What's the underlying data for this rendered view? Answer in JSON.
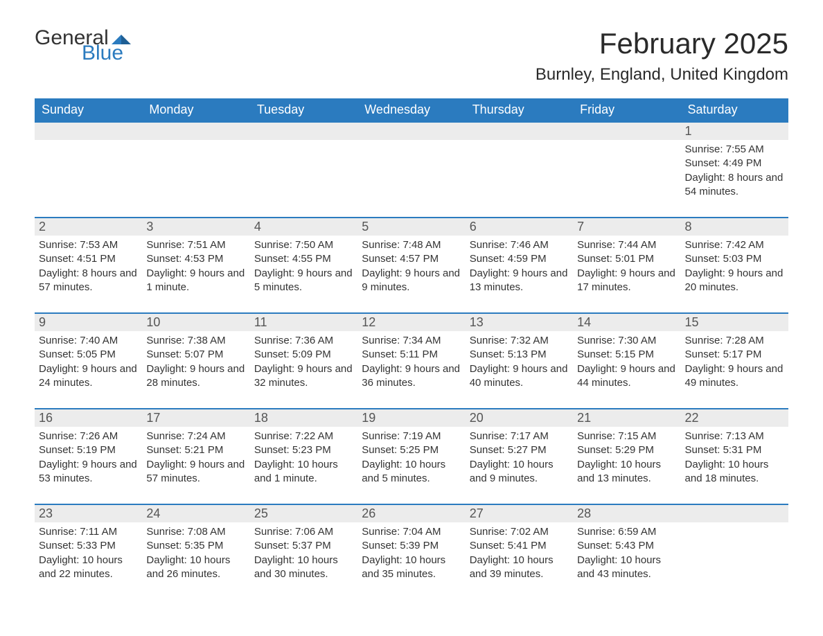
{
  "brand": {
    "word1": "General",
    "word2": "Blue",
    "text_color": "#333333",
    "accent_color": "#2b7bbf",
    "word1_fontsize": 30,
    "word2_fontsize": 30
  },
  "title": {
    "month_year": "February 2025",
    "location": "Burnley, England, United Kingdom",
    "title_fontsize": 42,
    "location_fontsize": 24,
    "title_color": "#2a2a2a"
  },
  "calendar": {
    "type": "table",
    "header_bg": "#2b7bbf",
    "header_text_color": "#ffffff",
    "daynum_bg": "#ececec",
    "row_border_color": "#2b7bbf",
    "body_text_color": "#333333",
    "body_fontsize": 15,
    "header_fontsize": 18,
    "daynum_fontsize": 18,
    "columns": [
      "Sunday",
      "Monday",
      "Tuesday",
      "Wednesday",
      "Thursday",
      "Friday",
      "Saturday"
    ],
    "weeks": [
      [
        null,
        null,
        null,
        null,
        null,
        null,
        {
          "n": "1",
          "sunrise": "7:55 AM",
          "sunset": "4:49 PM",
          "daylight": "8 hours and 54 minutes."
        }
      ],
      [
        {
          "n": "2",
          "sunrise": "7:53 AM",
          "sunset": "4:51 PM",
          "daylight": "8 hours and 57 minutes."
        },
        {
          "n": "3",
          "sunrise": "7:51 AM",
          "sunset": "4:53 PM",
          "daylight": "9 hours and 1 minute."
        },
        {
          "n": "4",
          "sunrise": "7:50 AM",
          "sunset": "4:55 PM",
          "daylight": "9 hours and 5 minutes."
        },
        {
          "n": "5",
          "sunrise": "7:48 AM",
          "sunset": "4:57 PM",
          "daylight": "9 hours and 9 minutes."
        },
        {
          "n": "6",
          "sunrise": "7:46 AM",
          "sunset": "4:59 PM",
          "daylight": "9 hours and 13 minutes."
        },
        {
          "n": "7",
          "sunrise": "7:44 AM",
          "sunset": "5:01 PM",
          "daylight": "9 hours and 17 minutes."
        },
        {
          "n": "8",
          "sunrise": "7:42 AM",
          "sunset": "5:03 PM",
          "daylight": "9 hours and 20 minutes."
        }
      ],
      [
        {
          "n": "9",
          "sunrise": "7:40 AM",
          "sunset": "5:05 PM",
          "daylight": "9 hours and 24 minutes."
        },
        {
          "n": "10",
          "sunrise": "7:38 AM",
          "sunset": "5:07 PM",
          "daylight": "9 hours and 28 minutes."
        },
        {
          "n": "11",
          "sunrise": "7:36 AM",
          "sunset": "5:09 PM",
          "daylight": "9 hours and 32 minutes."
        },
        {
          "n": "12",
          "sunrise": "7:34 AM",
          "sunset": "5:11 PM",
          "daylight": "9 hours and 36 minutes."
        },
        {
          "n": "13",
          "sunrise": "7:32 AM",
          "sunset": "5:13 PM",
          "daylight": "9 hours and 40 minutes."
        },
        {
          "n": "14",
          "sunrise": "7:30 AM",
          "sunset": "5:15 PM",
          "daylight": "9 hours and 44 minutes."
        },
        {
          "n": "15",
          "sunrise": "7:28 AM",
          "sunset": "5:17 PM",
          "daylight": "9 hours and 49 minutes."
        }
      ],
      [
        {
          "n": "16",
          "sunrise": "7:26 AM",
          "sunset": "5:19 PM",
          "daylight": "9 hours and 53 minutes."
        },
        {
          "n": "17",
          "sunrise": "7:24 AM",
          "sunset": "5:21 PM",
          "daylight": "9 hours and 57 minutes."
        },
        {
          "n": "18",
          "sunrise": "7:22 AM",
          "sunset": "5:23 PM",
          "daylight": "10 hours and 1 minute."
        },
        {
          "n": "19",
          "sunrise": "7:19 AM",
          "sunset": "5:25 PM",
          "daylight": "10 hours and 5 minutes."
        },
        {
          "n": "20",
          "sunrise": "7:17 AM",
          "sunset": "5:27 PM",
          "daylight": "10 hours and 9 minutes."
        },
        {
          "n": "21",
          "sunrise": "7:15 AM",
          "sunset": "5:29 PM",
          "daylight": "10 hours and 13 minutes."
        },
        {
          "n": "22",
          "sunrise": "7:13 AM",
          "sunset": "5:31 PM",
          "daylight": "10 hours and 18 minutes."
        }
      ],
      [
        {
          "n": "23",
          "sunrise": "7:11 AM",
          "sunset": "5:33 PM",
          "daylight": "10 hours and 22 minutes."
        },
        {
          "n": "24",
          "sunrise": "7:08 AM",
          "sunset": "5:35 PM",
          "daylight": "10 hours and 26 minutes."
        },
        {
          "n": "25",
          "sunrise": "7:06 AM",
          "sunset": "5:37 PM",
          "daylight": "10 hours and 30 minutes."
        },
        {
          "n": "26",
          "sunrise": "7:04 AM",
          "sunset": "5:39 PM",
          "daylight": "10 hours and 35 minutes."
        },
        {
          "n": "27",
          "sunrise": "7:02 AM",
          "sunset": "5:41 PM",
          "daylight": "10 hours and 39 minutes."
        },
        {
          "n": "28",
          "sunrise": "6:59 AM",
          "sunset": "5:43 PM",
          "daylight": "10 hours and 43 minutes."
        },
        null
      ]
    ],
    "labels": {
      "sunrise_prefix": "Sunrise: ",
      "sunset_prefix": "Sunset: ",
      "daylight_prefix": "Daylight: "
    }
  }
}
